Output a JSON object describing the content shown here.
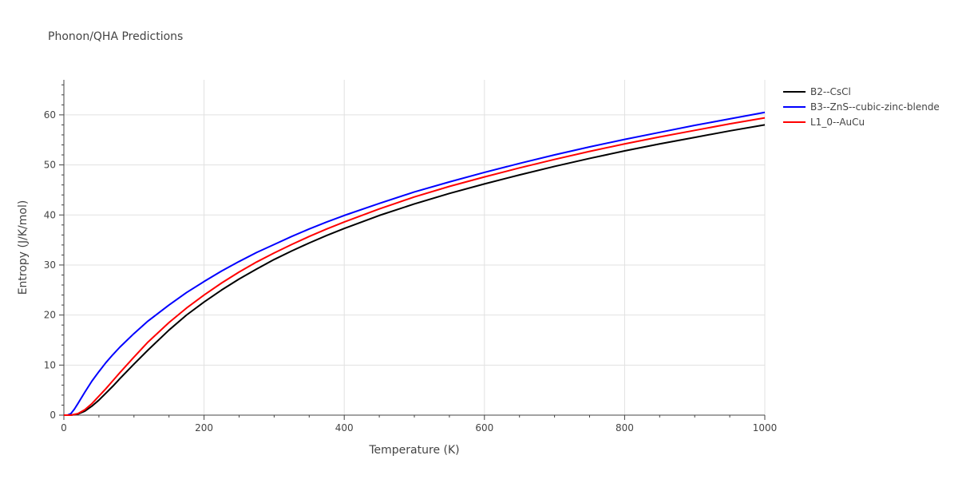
{
  "chart_data": {
    "type": "line",
    "title": "Phonon/QHA Predictions",
    "xlabel": "Temperature (K)",
    "ylabel": "Entropy (J/K/mol)",
    "xlim": [
      0,
      1000
    ],
    "ylim": [
      0,
      67
    ],
    "x_ticks": [
      0,
      200,
      400,
      600,
      800,
      1000
    ],
    "y_ticks": [
      0,
      10,
      20,
      30,
      40,
      50,
      60
    ],
    "grid": true,
    "legend_position": "right",
    "series": [
      {
        "name": "B2--CsCl",
        "color": "#000000",
        "x": [
          0,
          10,
          20,
          30,
          40,
          50,
          60,
          70,
          80,
          100,
          120,
          150,
          175,
          200,
          225,
          250,
          275,
          300,
          325,
          350,
          375,
          400,
          450,
          500,
          550,
          600,
          650,
          700,
          750,
          800,
          850,
          900,
          950,
          1000
        ],
        "y": [
          0,
          0,
          0.2,
          0.8,
          1.8,
          3.0,
          4.4,
          5.8,
          7.3,
          10.2,
          13.0,
          17.0,
          20.0,
          22.6,
          25.0,
          27.2,
          29.2,
          31.1,
          32.8,
          34.4,
          35.9,
          37.3,
          39.9,
          42.2,
          44.3,
          46.2,
          48.0,
          49.7,
          51.3,
          52.8,
          54.2,
          55.5,
          56.8,
          58.0
        ]
      },
      {
        "name": "B3--ZnS--cubic-zinc-blende",
        "color": "#0000ff",
        "x": [
          0,
          5,
          10,
          15,
          20,
          30,
          40,
          50,
          60,
          70,
          80,
          100,
          120,
          150,
          175,
          200,
          225,
          250,
          275,
          300,
          325,
          350,
          375,
          400,
          450,
          500,
          550,
          600,
          650,
          700,
          750,
          800,
          850,
          900,
          950,
          1000
        ],
        "y": [
          0,
          0,
          0.3,
          1.2,
          2.3,
          4.6,
          6.8,
          8.7,
          10.5,
          12.1,
          13.6,
          16.3,
          18.8,
          22.0,
          24.5,
          26.7,
          28.8,
          30.7,
          32.5,
          34.1,
          35.7,
          37.2,
          38.6,
          39.9,
          42.3,
          44.6,
          46.6,
          48.5,
          50.3,
          52.0,
          53.6,
          55.1,
          56.5,
          57.9,
          59.2,
          60.5
        ]
      },
      {
        "name": "L1_0--AuCu",
        "color": "#ff0000",
        "x": [
          0,
          10,
          20,
          30,
          40,
          50,
          60,
          70,
          80,
          100,
          120,
          150,
          175,
          200,
          225,
          250,
          275,
          300,
          325,
          350,
          375,
          400,
          450,
          500,
          550,
          600,
          650,
          700,
          750,
          800,
          850,
          900,
          950,
          1000
        ],
        "y": [
          0,
          0,
          0.3,
          1.1,
          2.3,
          3.8,
          5.3,
          6.9,
          8.5,
          11.6,
          14.6,
          18.5,
          21.4,
          24.0,
          26.4,
          28.6,
          30.6,
          32.4,
          34.1,
          35.7,
          37.2,
          38.6,
          41.2,
          43.6,
          45.7,
          47.6,
          49.4,
          51.1,
          52.7,
          54.2,
          55.6,
          56.9,
          58.2,
          59.4
        ]
      }
    ]
  }
}
